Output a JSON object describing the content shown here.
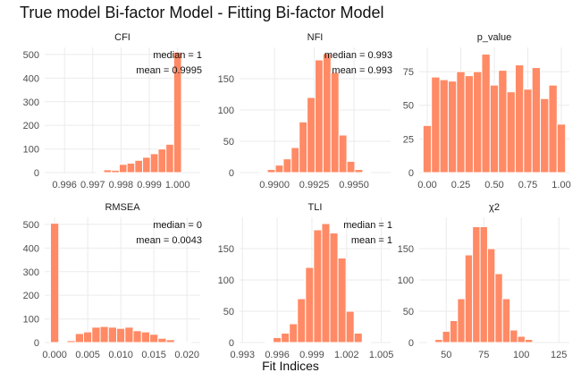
{
  "title": "True model Bi-factor Model - Fitting Bi-factor Model",
  "xlabel": "Fit Indices",
  "colors": {
    "bar": "#FF8A65",
    "bar_stroke": "#ffffff",
    "grid": "#ebebeb",
    "text": "#4d4d4d"
  },
  "chart_data": [
    {
      "type": "bar",
      "panel": "CFI",
      "title": "CFI",
      "xlim": [
        0.9953,
        1.0008
      ],
      "ylim": [
        0,
        530
      ],
      "xticks": [
        0.996,
        0.997,
        0.998,
        0.999,
        1.0
      ],
      "xtick_labels": [
        "0.996",
        "0.997",
        "0.998",
        "0.999",
        "1.000"
      ],
      "yticks": [
        0,
        100,
        200,
        300,
        400,
        500
      ],
      "bin_width": 0.000275,
      "x": [
        0.99725,
        0.997525,
        0.9978,
        0.998075,
        0.99835,
        0.998625,
        0.9989,
        0.999175,
        0.99945,
        0.999725,
        1.0
      ],
      "values": [
        2,
        12,
        10,
        35,
        40,
        52,
        65,
        80,
        100,
        120,
        510
      ],
      "annotations": [
        "median =  1",
        "mean = 0.9995"
      ]
    },
    {
      "type": "bar",
      "panel": "NFI",
      "title": "NFI",
      "xlim": [
        0.9878,
        0.9973
      ],
      "ylim": [
        0,
        200
      ],
      "xticks": [
        0.99,
        0.9925,
        0.995
      ],
      "xtick_labels": [
        "0.9900",
        "0.9925",
        "0.9950"
      ],
      "yticks": [
        0,
        50,
        100,
        150
      ],
      "bin_width": 0.0005,
      "x": [
        0.9893,
        0.9898,
        0.9903,
        0.9908,
        0.9913,
        0.9918,
        0.9923,
        0.9928,
        0.9933,
        0.9938,
        0.9943,
        0.9948,
        0.9953,
        0.9958
      ],
      "values": [
        1,
        5,
        12,
        22,
        40,
        81,
        120,
        180,
        190,
        160,
        60,
        18,
        5,
        1
      ],
      "annotations": [
        "median =  0.993",
        "mean = 0.993"
      ]
    },
    {
      "type": "bar",
      "panel": "p_value",
      "title": "p_value",
      "xlim": [
        -0.06,
        1.06
      ],
      "ylim": [
        0,
        93
      ],
      "xticks": [
        0.0,
        0.25,
        0.5,
        0.75,
        1.0
      ],
      "xtick_labels": [
        "0.00",
        "0.25",
        "0.50",
        "0.75",
        "1.00"
      ],
      "yticks": [
        0,
        25,
        50,
        75
      ],
      "bin_width": 0.0625,
      "x": [
        0.0,
        0.0625,
        0.125,
        0.1875,
        0.25,
        0.3125,
        0.375,
        0.4375,
        0.5,
        0.5625,
        0.625,
        0.6875,
        0.75,
        0.8125,
        0.875,
        0.9375,
        1.0
      ],
      "values": [
        35,
        71,
        69,
        68,
        75,
        72,
        75,
        88,
        65,
        76,
        60,
        80,
        62,
        78,
        55,
        65,
        36
      ],
      "annotations": []
    },
    {
      "type": "bar",
      "panel": "RMSEA",
      "title": "RMSEA",
      "xlim": [
        -0.0015,
        0.022
      ],
      "ylim": [
        0,
        530
      ],
      "xticks": [
        0.0,
        0.005,
        0.01,
        0.015,
        0.02
      ],
      "xtick_labels": [
        "0.000",
        "0.005",
        "0.010",
        "0.015",
        "0.020"
      ],
      "yticks": [
        0,
        100,
        200,
        300,
        400,
        500
      ],
      "bin_width": 0.00125,
      "x": [
        0.0,
        0.00125,
        0.0025,
        0.00375,
        0.005,
        0.00625,
        0.0075,
        0.00875,
        0.01,
        0.01125,
        0.0125,
        0.01375,
        0.015,
        0.01625,
        0.0175,
        0.01875,
        0.02
      ],
      "values": [
        505,
        2,
        8,
        38,
        45,
        65,
        68,
        65,
        60,
        65,
        50,
        45,
        35,
        18,
        12,
        3,
        1
      ],
      "annotations": [
        "median =  0",
        "mean = 0.0043"
      ]
    },
    {
      "type": "bar",
      "panel": "TLI",
      "title": "TLI",
      "xlim": [
        0.99275,
        1.0058
      ],
      "ylim": [
        0,
        200
      ],
      "xticks": [
        0.993,
        0.996,
        0.999,
        1.002,
        1.005
      ],
      "xtick_labels": [
        "0.993",
        "0.996",
        "0.999",
        "1.002",
        "1.005"
      ],
      "yticks": [
        0,
        50,
        100,
        150
      ],
      "bin_width": 0.0007,
      "x": [
        0.9953,
        0.996,
        0.9967,
        0.9974,
        0.9981,
        0.9988,
        0.9995,
        1.0002,
        1.0009,
        1.0016,
        1.0023,
        1.003,
        1.0037
      ],
      "values": [
        1,
        8,
        15,
        30,
        70,
        120,
        180,
        190,
        175,
        135,
        50,
        15,
        1
      ],
      "annotations": [
        "median =  1",
        "mean = 1"
      ]
    },
    {
      "type": "bar",
      "panel": "chi2",
      "title": "χ2",
      "xlim": [
        32,
        132
      ],
      "ylim": [
        0,
        200
      ],
      "xticks": [
        50,
        75,
        100,
        125
      ],
      "xtick_labels": [
        "50",
        "75",
        "100",
        "125"
      ],
      "yticks": [
        0,
        50,
        100,
        150
      ],
      "bin_width": 5,
      "x": [
        40,
        45,
        50,
        55,
        60,
        65,
        70,
        75,
        80,
        85,
        90,
        95,
        100,
        105
      ],
      "values": [
        1,
        5,
        18,
        35,
        70,
        140,
        185,
        185,
        150,
        110,
        70,
        20,
        10,
        5
      ],
      "annotations": []
    }
  ]
}
